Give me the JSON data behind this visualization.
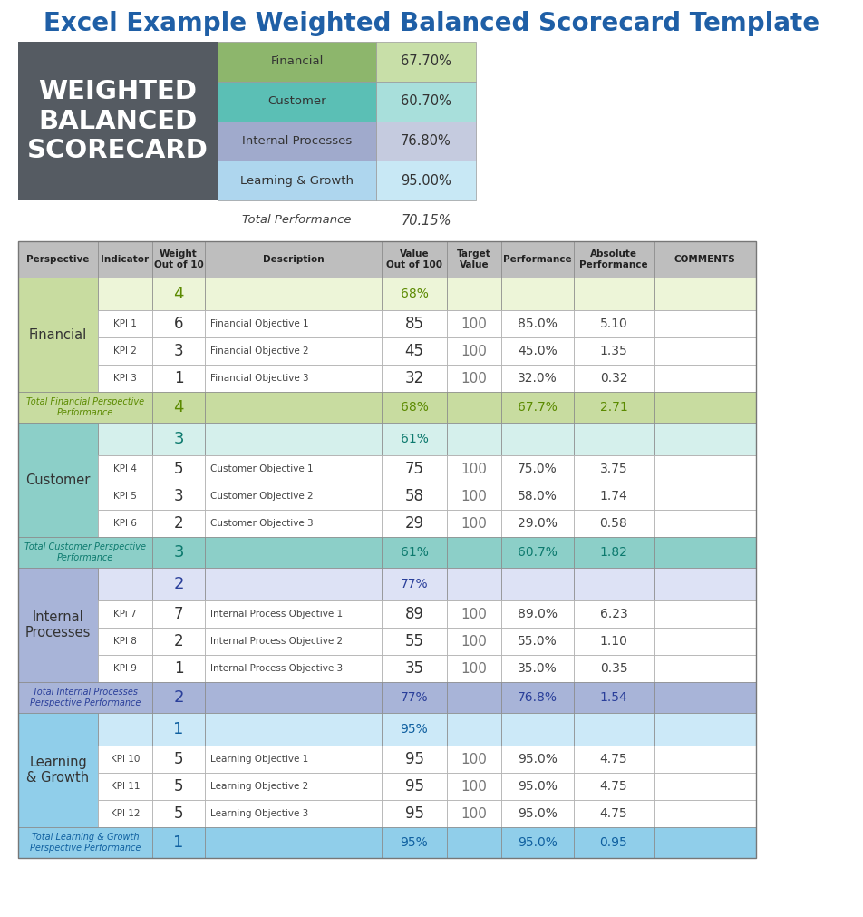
{
  "title": "Excel Example Weighted Balanced Scorecard Template",
  "title_color": "#1F5FA6",
  "title_fontsize": 20,
  "summary_categories": [
    "Financial",
    "Customer",
    "Internal Processes",
    "Learning & Growth"
  ],
  "summary_values": [
    "67.70%",
    "60.70%",
    "76.80%",
    "95.00%"
  ],
  "summary_label_colors": [
    "#8DB66C",
    "#5BBFB5",
    "#A0AACC",
    "#AED6EE"
  ],
  "summary_value_colors": [
    "#C8DFA8",
    "#A8DFDB",
    "#C5CBDF",
    "#C8E8F5"
  ],
  "total_perf_label": "Total Performance",
  "total_perf_value": "70.15%",
  "header_bg": "#BEBEBE",
  "header_cols": [
    "Perspective",
    "Indicator",
    "Weight\nOut of 10",
    "Description",
    "Value\nOut of 100",
    "Target\nValue",
    "Performance",
    "Absolute\nPerformance",
    "COMMENTS"
  ],
  "perspectives": [
    {
      "name": "Financial",
      "name_bg": "#C8DCA0",
      "summary_weight": "4",
      "summary_value": "68%",
      "summary_perf": "67.7%",
      "summary_abs": "2.71",
      "row_bg": "#EDF5D8",
      "total_bg": "#C8DCA0",
      "total_label": "Total Financial Perspective\nPerformance",
      "total_color": "#5B8A00",
      "kpis": [
        {
          "id": "KPI 1",
          "weight": "6",
          "desc": "Financial Objective 1",
          "value": "85",
          "target": "100",
          "perf": "85.0%",
          "abs": "5.10"
        },
        {
          "id": "KPI 2",
          "weight": "3",
          "desc": "Financial Objective 2",
          "value": "45",
          "target": "100",
          "perf": "45.0%",
          "abs": "1.35"
        },
        {
          "id": "KPI 3",
          "weight": "1",
          "desc": "Financial Objective 3",
          "value": "32",
          "target": "100",
          "perf": "32.0%",
          "abs": "0.32"
        }
      ]
    },
    {
      "name": "Customer",
      "name_bg": "#8CCFC8",
      "summary_weight": "3",
      "summary_value": "61%",
      "summary_perf": "60.7%",
      "summary_abs": "1.82",
      "row_bg": "#D5F0EC",
      "total_bg": "#8CCFC8",
      "total_label": "Total Customer Perspective\nPerformance",
      "total_color": "#0D7A6E",
      "kpis": [
        {
          "id": "KPI 4",
          "weight": "5",
          "desc": "Customer Objective 1",
          "value": "75",
          "target": "100",
          "perf": "75.0%",
          "abs": "3.75"
        },
        {
          "id": "KPI 5",
          "weight": "3",
          "desc": "Customer Objective 2",
          "value": "58",
          "target": "100",
          "perf": "58.0%",
          "abs": "1.74"
        },
        {
          "id": "KPI 6",
          "weight": "2",
          "desc": "Customer Objective 3",
          "value": "29",
          "target": "100",
          "perf": "29.0%",
          "abs": "0.58"
        }
      ]
    },
    {
      "name": "Internal\nProcesses",
      "name_bg": "#A8B4D8",
      "summary_weight": "2",
      "summary_value": "77%",
      "summary_perf": "76.8%",
      "summary_abs": "1.54",
      "row_bg": "#DDE2F5",
      "total_bg": "#A8B4D8",
      "total_label": "Total Internal Processes\nPerspective Performance",
      "total_color": "#2A3F9A",
      "kpis": [
        {
          "id": "KPi 7",
          "weight": "7",
          "desc": "Internal Process Objective 1",
          "value": "89",
          "target": "100",
          "perf": "89.0%",
          "abs": "6.23"
        },
        {
          "id": "KPI 8",
          "weight": "2",
          "desc": "Internal Process Objective 2",
          "value": "55",
          "target": "100",
          "perf": "55.0%",
          "abs": "1.10"
        },
        {
          "id": "KPI 9",
          "weight": "1",
          "desc": "Internal Process Objective 3",
          "value": "35",
          "target": "100",
          "perf": "35.0%",
          "abs": "0.35"
        }
      ]
    },
    {
      "name": "Learning\n& Growth",
      "name_bg": "#90CEEA",
      "summary_weight": "1",
      "summary_value": "95%",
      "summary_perf": "95.0%",
      "summary_abs": "0.95",
      "row_bg": "#CCE9F8",
      "total_bg": "#90CEEA",
      "total_label": "Total Learning & Growth\nPerspective Performance",
      "total_color": "#1060A0",
      "kpis": [
        {
          "id": "KPI 10",
          "weight": "5",
          "desc": "Learning Objective 1",
          "value": "95",
          "target": "100",
          "perf": "95.0%",
          "abs": "4.75"
        },
        {
          "id": "KPI 11",
          "weight": "5",
          "desc": "Learning Objective 2",
          "value": "95",
          "target": "100",
          "perf": "95.0%",
          "abs": "4.75"
        },
        {
          "id": "KPI 12",
          "weight": "5",
          "desc": "Learning Objective 3",
          "value": "95",
          "target": "100",
          "perf": "95.0%",
          "abs": "4.75"
        }
      ]
    }
  ],
  "logo_bg": "#555B62",
  "logo_text": "WEIGHTED\nBALANCED\nSCORECARD",
  "logo_text_color": "#FFFFFF",
  "white": "#FFFFFF"
}
